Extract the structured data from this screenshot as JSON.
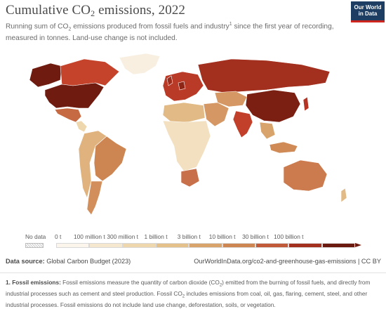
{
  "header": {
    "title_main": "Cumulative CO",
    "title_sub": "2",
    "title_end": " emissions, 2022",
    "subtitle_a": "Running sum of CO",
    "subtitle_sub": "2",
    "subtitle_b": " emissions produced from fossil fuels and industry",
    "subtitle_sup": "1",
    "subtitle_c": " since the first year of recording, measured in tonnes. Land-use change is not included."
  },
  "logo": {
    "line1": "Our World",
    "line2": "in Data"
  },
  "legend": {
    "no_data": "No data",
    "bins": [
      {
        "label": "0 t",
        "color": "#fcf5ec"
      },
      {
        "label": "100 million t",
        "color": "#f6e8cf"
      },
      {
        "label": "300 million t",
        "color": "#eed7ad"
      },
      {
        "label": "1 billion t",
        "color": "#e4c18a"
      },
      {
        "label": "3 billion t",
        "color": "#d9a36c"
      },
      {
        "label": "10 billion t",
        "color": "#cd8552"
      },
      {
        "label": "30 billion t",
        "color": "#c15a39"
      },
      {
        "label": "100 billion t",
        "color": "#a3301f"
      },
      {
        "label": "",
        "color": "#6a1a0f"
      }
    ]
  },
  "map_colors": {
    "no_data": "#ededed",
    "ocean": "#ffffff",
    "border": "#ffffff"
  },
  "map_regions": [
    {
      "name": "united-states",
      "value_bin": 8,
      "color": "#6f1b10"
    },
    {
      "name": "canada",
      "value_bin": 7,
      "color": "#c5432b"
    },
    {
      "name": "alaska",
      "value_bin": 8,
      "color": "#6f1b10"
    },
    {
      "name": "greenland",
      "value_bin": 1,
      "color": "#f8efe1"
    },
    {
      "name": "mexico",
      "value_bin": 6,
      "color": "#c66a43"
    },
    {
      "name": "central-america",
      "value_bin": 2,
      "color": "#eed7ad"
    },
    {
      "name": "brazil",
      "value_bin": 6,
      "color": "#cd8552"
    },
    {
      "name": "south-america-rest",
      "value_bin": 4,
      "color": "#e0b27d"
    },
    {
      "name": "argentina",
      "value_bin": 5,
      "color": "#d28f5b"
    },
    {
      "name": "europe",
      "value_bin": 7,
      "color": "#b83a27"
    },
    {
      "name": "uk",
      "value_bin": 7,
      "color": "#9c2c1c"
    },
    {
      "name": "germany",
      "value_bin": 7,
      "color": "#8e2617"
    },
    {
      "name": "russia",
      "value_bin": 8,
      "color": "#a3301f"
    },
    {
      "name": "china",
      "value_bin": 8,
      "color": "#7a1f12"
    },
    {
      "name": "india",
      "value_bin": 7,
      "color": "#c23f2a"
    },
    {
      "name": "middle-east",
      "value_bin": 5,
      "color": "#d59763"
    },
    {
      "name": "north-africa",
      "value_bin": 4,
      "color": "#e2ba86"
    },
    {
      "name": "africa",
      "value_bin": 2,
      "color": "#f2e0c0"
    },
    {
      "name": "south-africa",
      "value_bin": 6,
      "color": "#c7704a"
    },
    {
      "name": "australia",
      "value_bin": 6,
      "color": "#cb7b4e"
    },
    {
      "name": "japan",
      "value_bin": 7,
      "color": "#b53424"
    },
    {
      "name": "indonesia",
      "value_bin": 6,
      "color": "#cf8a55"
    },
    {
      "name": "southeast-asia",
      "value_bin": 5,
      "color": "#d9a36c"
    },
    {
      "name": "central-asia",
      "value_bin": 5,
      "color": "#d59763"
    }
  ],
  "footer": {
    "source_label": "Data source:",
    "source_text": " Global Carbon Budget (2023)",
    "url": "OurWorldInData.org/co2-and-greenhouse-gas-emissions | CC BY"
  },
  "footnote": {
    "label": "1. Fossil emissions:",
    "text_a": " Fossil emissions measure the quantity of carbon dioxide (CO",
    "sub": "2",
    "text_b": ") emitted from the burning of fossil fuels, and directly from industrial processes such as cement and steel production. Fossil CO",
    "sub2": "2",
    "text_c": " includes emissions from coal, oil, gas, flaring, cement, steel, and other industrial processes. Fossil emissions do not include land use change, deforestation, soils, or vegetation."
  }
}
